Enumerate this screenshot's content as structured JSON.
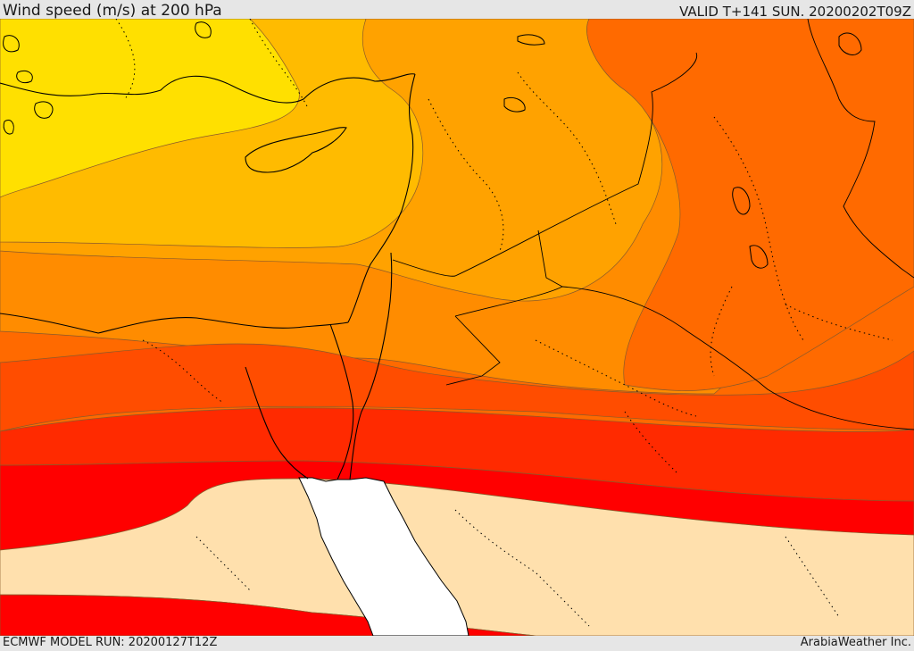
{
  "header": {
    "title": "Wind speed (m/s) at 200 hPa",
    "valid": "VALID T+141 SUN. 20200202T09Z"
  },
  "footer": {
    "model_run": "ECMWF MODEL RUN: 20200127T12Z",
    "credit": "ArabiaWeather Inc."
  },
  "map": {
    "variable": "wind speed",
    "level_hpa": 200,
    "band_colors": [
      "#ffe000",
      "#ffbb00",
      "#ffa200",
      "#ff8c00",
      "#ff6a00",
      "#ff4d00",
      "#ff2a00",
      "#ff0000",
      "#ffe0ad"
    ],
    "land_outline_color": "#000000",
    "sea_color": "#ffffff"
  }
}
